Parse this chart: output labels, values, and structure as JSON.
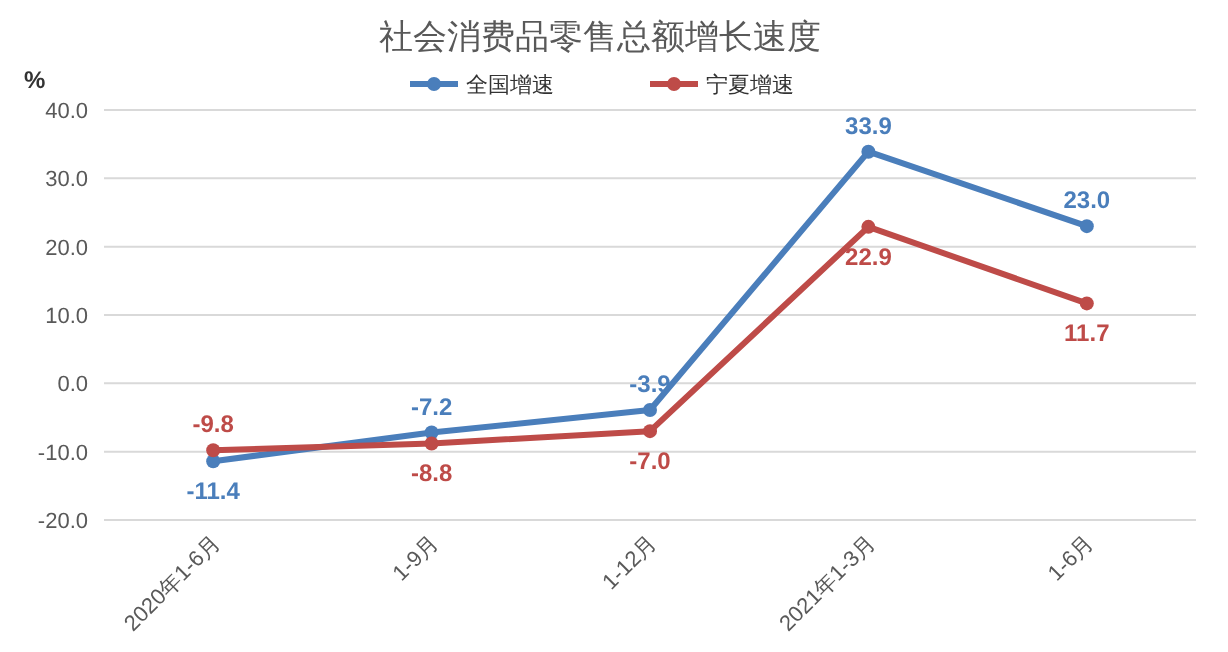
{
  "chart_data": {
    "type": "line",
    "title": "社会消费品零售总额增长速度",
    "ylabel": "%",
    "categories": [
      "2020年1-6月",
      "1-9月",
      "1-12月",
      "2021年1-3月",
      "1-6月"
    ],
    "series": [
      {
        "name": "全国增速",
        "color": "#4a7ebb",
        "values": [
          -11.4,
          -7.2,
          -3.9,
          33.9,
          23.0
        ],
        "value_labels": [
          "-11.4",
          "-7.2",
          "-3.9",
          "33.9",
          "23.0"
        ]
      },
      {
        "name": "宁夏增速",
        "color": "#be4b48",
        "values": [
          -9.8,
          -8.8,
          -7.0,
          22.9,
          11.7
        ],
        "value_labels": [
          "-9.8",
          "-8.8",
          "-7.0",
          "22.9",
          "11.7"
        ]
      }
    ],
    "ylim": [
      -20,
      40
    ],
    "yticks": [
      {
        "value": -20,
        "label": "-20.0"
      },
      {
        "value": -10,
        "label": "-10.0"
      },
      {
        "value": 0,
        "label": "0.0"
      },
      {
        "value": 10,
        "label": "10.0"
      },
      {
        "value": 20,
        "label": "20.0"
      },
      {
        "value": 30,
        "label": "30.0"
      },
      {
        "value": 40,
        "label": "40.0"
      }
    ],
    "grid": "y",
    "legend": "top",
    "marker": "circle",
    "line_style": "solid"
  }
}
